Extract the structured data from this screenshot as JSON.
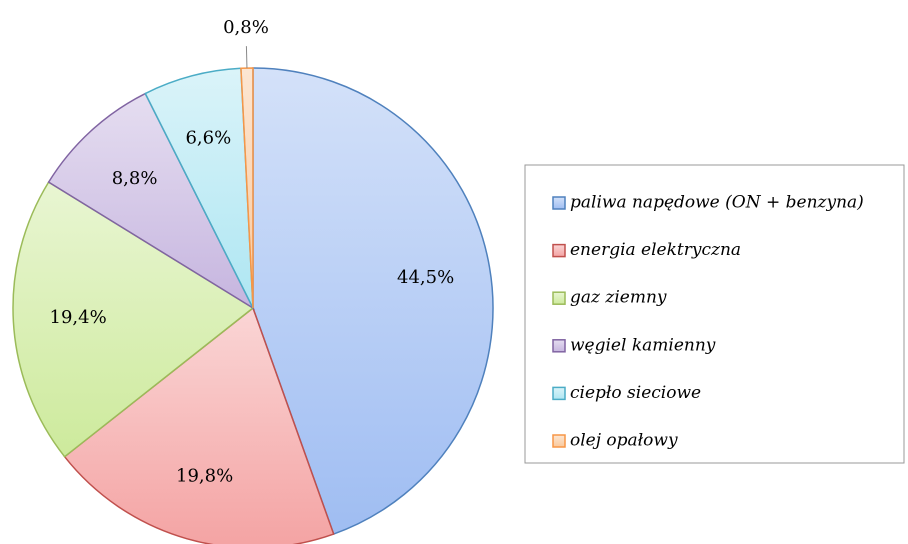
{
  "chart_data": {
    "type": "pie",
    "categories": [
      "paliwa napędowe (ON + benzyna)",
      "energia elektryczna",
      "gaz ziemny",
      "węgiel kamienny",
      "ciepło sieciowe",
      "olej opałowy"
    ],
    "values": [
      44.5,
      19.8,
      19.4,
      8.8,
      6.6,
      0.8
    ],
    "value_labels": [
      "44,5%",
      "19,8%",
      "19,4%",
      "8,8%",
      "6,6%",
      "0,8%"
    ],
    "colors": [
      "#9fbdf2",
      "#f4a3a3",
      "#cdea9c",
      "#c6b5df",
      "#aee6f2",
      "#f9c89c"
    ],
    "edge_colors": [
      "#4f81bd",
      "#c0504d",
      "#9bbb59",
      "#8064a2",
      "#4bacc6",
      "#f79646"
    ],
    "legend": "right"
  }
}
